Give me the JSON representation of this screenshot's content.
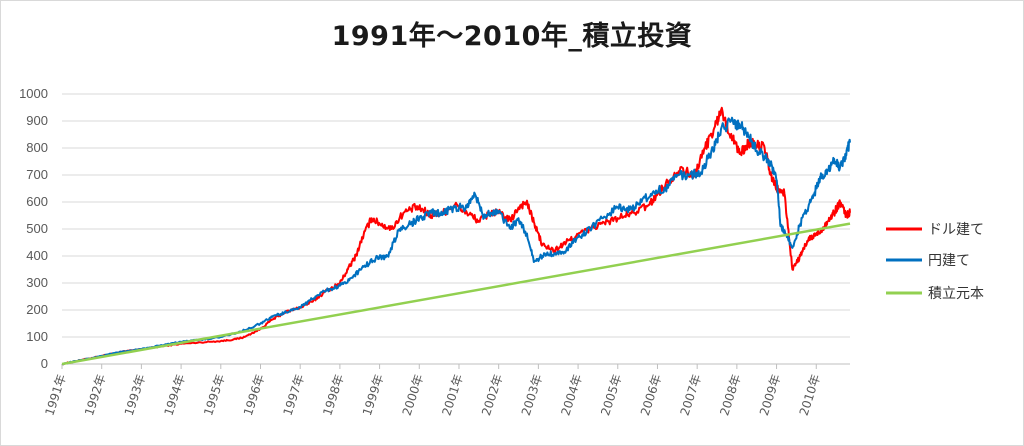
{
  "chart_data": {
    "type": "line",
    "title": "1991年～2010年_積立投資",
    "xlabel": "",
    "ylabel": "",
    "ylim": [
      0,
      1000
    ],
    "yticks": [
      0,
      100,
      200,
      300,
      400,
      500,
      600,
      700,
      800,
      900,
      1000
    ],
    "xlim": [
      1991,
      2010.85
    ],
    "xtick_labels": [
      "1991年",
      "1992年",
      "1993年",
      "1994年",
      "1995年",
      "1996年",
      "1997年",
      "1998年",
      "1999年",
      "2000年",
      "2001年",
      "2002年",
      "2003年",
      "2004年",
      "2005年",
      "2006年",
      "2007年",
      "2008年",
      "2009年",
      "2010年"
    ],
    "xtick_values": [
      1991,
      1992,
      1993,
      1994,
      1995,
      1996,
      1997,
      1998,
      1999,
      2000,
      2001,
      2002,
      2003,
      2004,
      2005,
      2006,
      2007,
      2008,
      2009,
      2010
    ],
    "grid": true,
    "legend_position": "right",
    "series": [
      {
        "name": "ドル建て",
        "color": "#ff0000",
        "x": [
          1991.0,
          1991.5,
          1992.0,
          1992.5,
          1993.0,
          1993.5,
          1994.0,
          1994.5,
          1995.0,
          1995.3,
          1995.6,
          1996.0,
          1996.3,
          1996.6,
          1997.0,
          1997.3,
          1997.6,
          1998.0,
          1998.2,
          1998.4,
          1998.6,
          1998.8,
          1999.0,
          1999.3,
          1999.6,
          1999.9,
          2000.1,
          2000.3,
          2000.6,
          2000.9,
          2001.2,
          2001.5,
          2001.8,
          2002.0,
          2002.3,
          2002.5,
          2002.7,
          2002.9,
          2003.1,
          2003.4,
          2003.7,
          2004.0,
          2004.3,
          2004.6,
          2005.0,
          2005.4,
          2005.8,
          2006.0,
          2006.3,
          2006.6,
          2006.9,
          2007.2,
          2007.45,
          2007.6,
          2007.9,
          2008.1,
          2008.3,
          2008.5,
          2008.7,
          2008.85,
          2009.0,
          2009.2,
          2009.4,
          2009.6,
          2009.8,
          2010.0,
          2010.15,
          2010.3,
          2010.45,
          2010.6,
          2010.75,
          2010.85
        ],
        "values": [
          0,
          15,
          30,
          45,
          55,
          65,
          75,
          80,
          85,
          90,
          100,
          130,
          165,
          190,
          210,
          230,
          265,
          300,
          350,
          400,
          480,
          540,
          520,
          500,
          560,
          580,
          570,
          550,
          560,
          590,
          560,
          530,
          560,
          560,
          530,
          580,
          600,
          520,
          440,
          420,
          450,
          480,
          500,
          520,
          540,
          560,
          590,
          630,
          680,
          730,
          690,
          800,
          880,
          940,
          830,
          780,
          820,
          810,
          800,
          700,
          650,
          630,
          350,
          400,
          460,
          480,
          500,
          530,
          560,
          600,
          550,
          560
        ]
      },
      {
        "name": "円建て",
        "color": "#0070c0",
        "x": [
          1991.0,
          1991.5,
          1992.0,
          1992.5,
          1993.0,
          1993.5,
          1994.0,
          1994.5,
          1995.0,
          1995.5,
          1996.0,
          1996.3,
          1996.6,
          1997.0,
          1997.3,
          1997.6,
          1998.0,
          1998.3,
          1998.6,
          1998.9,
          1999.2,
          1999.5,
          1999.8,
          2000.0,
          2000.3,
          2000.6,
          2000.9,
          2001.2,
          2001.4,
          2001.6,
          2001.8,
          2002.0,
          2002.3,
          2002.5,
          2002.7,
          2002.9,
          2003.1,
          2003.4,
          2003.7,
          2004.0,
          2004.3,
          2004.6,
          2005.0,
          2005.3,
          2005.6,
          2005.9,
          2006.2,
          2006.5,
          2006.8,
          2007.1,
          2007.4,
          2007.6,
          2007.9,
          2008.1,
          2008.3,
          2008.5,
          2008.7,
          2008.85,
          2009.0,
          2009.1,
          2009.25,
          2009.4,
          2009.6,
          2009.8,
          2010.0,
          2010.15,
          2010.3,
          2010.45,
          2010.6,
          2010.75,
          2010.85
        ],
        "values": [
          0,
          15,
          30,
          45,
          55,
          70,
          82,
          90,
          100,
          120,
          150,
          175,
          190,
          210,
          240,
          270,
          290,
          320,
          360,
          390,
          400,
          500,
          520,
          540,
          560,
          560,
          580,
          580,
          630,
          550,
          560,
          560,
          500,
          540,
          480,
          380,
          400,
          410,
          420,
          470,
          500,
          540,
          580,
          570,
          600,
          640,
          650,
          700,
          700,
          710,
          800,
          870,
          900,
          880,
          840,
          790,
          770,
          740,
          680,
          510,
          480,
          430,
          520,
          580,
          650,
          700,
          720,
          760,
          730,
          780,
          820
        ]
      },
      {
        "name": "積立元本",
        "color": "#92d050",
        "x": [
          1991.0,
          2010.85
        ],
        "values": [
          0,
          520
        ]
      }
    ]
  }
}
